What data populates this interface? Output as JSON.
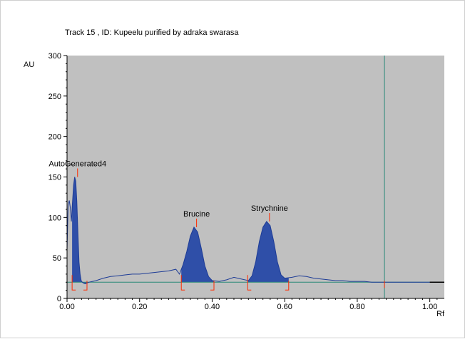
{
  "chart_data": {
    "type": "area",
    "title": "Track  15 , ID: Kupeelu purified by adraka swarasa",
    "ylabel": "AU",
    "xlabel": "Rf",
    "xlim": [
      0.0,
      1.04
    ],
    "ylim": [
      0,
      300
    ],
    "x_ticks": [
      "0.00",
      "0.20",
      "0.40",
      "0.60",
      "0.80",
      "1.00"
    ],
    "y_ticks": [
      "0",
      "50",
      "100",
      "150",
      "200",
      "250",
      "300"
    ],
    "x_tick_values": [
      0.0,
      0.2,
      0.4,
      0.6,
      0.8,
      1.0
    ],
    "y_tick_values": [
      0,
      50,
      100,
      150,
      200,
      250,
      300
    ],
    "plot_background": "#c0c0c0",
    "trace_color": "#1e3c96",
    "fill_color": "#2f4fa8",
    "baseline_color": "#2a8a78",
    "marker_color": "#ff2a00",
    "baseline_level": 20,
    "cursor_rf": 0.875,
    "trace": {
      "x": [
        0.0,
        0.003,
        0.006,
        0.009,
        0.012,
        0.015,
        0.018,
        0.021,
        0.024,
        0.027,
        0.03,
        0.033,
        0.036,
        0.039,
        0.042,
        0.045,
        0.05,
        0.06,
        0.08,
        0.1,
        0.12,
        0.14,
        0.16,
        0.18,
        0.2,
        0.22,
        0.24,
        0.26,
        0.28,
        0.3,
        0.31,
        0.32,
        0.33,
        0.34,
        0.35,
        0.36,
        0.37,
        0.38,
        0.39,
        0.4,
        0.42,
        0.44,
        0.46,
        0.48,
        0.5,
        0.51,
        0.52,
        0.53,
        0.54,
        0.55,
        0.56,
        0.57,
        0.58,
        0.59,
        0.6,
        0.62,
        0.64,
        0.66,
        0.68,
        0.7,
        0.72,
        0.74,
        0.76,
        0.78,
        0.8,
        0.82,
        0.84,
        0.86,
        0.88,
        0.9,
        0.92,
        0.94,
        0.96,
        0.98,
        1.0,
        1.04
      ],
      "y": [
        60,
        115,
        121,
        112,
        95,
        118,
        140,
        150,
        145,
        120,
        80,
        45,
        30,
        22,
        20,
        19,
        18,
        20,
        22,
        25,
        27,
        28,
        29,
        30,
        30,
        31,
        32,
        33,
        34,
        36,
        30,
        42,
        58,
        77,
        88,
        82,
        62,
        40,
        27,
        22,
        21,
        23,
        26,
        24,
        22,
        28,
        45,
        70,
        88,
        95,
        90,
        70,
        45,
        29,
        25,
        26,
        28,
        27,
        25,
        24,
        23,
        22,
        22,
        21,
        21,
        21,
        20,
        20,
        20,
        20,
        20,
        20,
        20,
        20,
        20,
        20
      ]
    },
    "peaks": [
      {
        "name": "AutoGenerated4",
        "rf": 0.029,
        "start": 0.014,
        "end": 0.055,
        "apex": 150
      },
      {
        "name": "Brucine",
        "rf": 0.357,
        "start": 0.315,
        "end": 0.405,
        "apex": 88
      },
      {
        "name": "Strychnine",
        "rf": 0.558,
        "start": 0.498,
        "end": 0.611,
        "apex": 95
      }
    ]
  }
}
